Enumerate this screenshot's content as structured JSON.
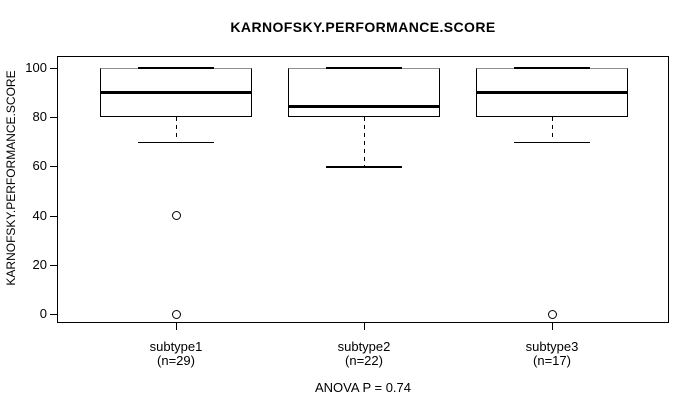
{
  "chart_data": {
    "type": "boxplot",
    "title": "KARNOFSKY.PERFORMANCE.SCORE",
    "ylabel": "KARNOFSKY.PERFORMANCE.SCORE",
    "xlabel": "",
    "annotation": "ANOVA P = 0.74",
    "ylim": [
      0,
      100
    ],
    "yticks": [
      0,
      20,
      40,
      60,
      80,
      100
    ],
    "grid": false,
    "legend": "none",
    "groups": [
      {
        "label": "subtype1",
        "sublabel": "(n=29)",
        "n": 29,
        "q1": 80,
        "median": 90,
        "q3": 100,
        "whisker_low": 70,
        "whisker_high": 100,
        "outliers": [
          40,
          0
        ]
      },
      {
        "label": "subtype2",
        "sublabel": "(n=22)",
        "n": 22,
        "q1": 80,
        "median": 84,
        "q3": 100,
        "whisker_low": 60,
        "whisker_high": 100,
        "outliers": []
      },
      {
        "label": "subtype3",
        "sublabel": "(n=17)",
        "n": 17,
        "q1": 80,
        "median": 90,
        "q3": 100,
        "whisker_low": 70,
        "whisker_high": 100,
        "outliers": [
          0
        ]
      }
    ]
  }
}
